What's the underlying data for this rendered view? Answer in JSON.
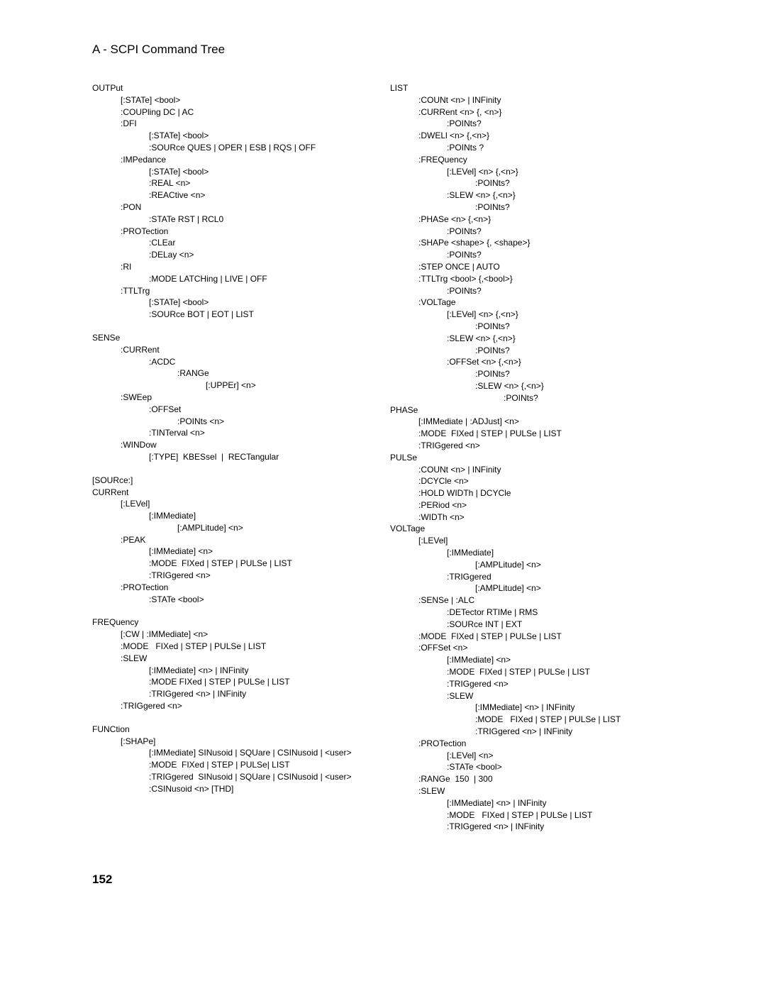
{
  "header": {
    "title": "A - SCPI Command Tree"
  },
  "footer": {
    "page_number": "152"
  },
  "left_column": [
    {
      "group": [
        {
          "text": "OUTPut",
          "indent": 0
        },
        {
          "text": "[:STATe] <bool>",
          "indent": 1
        },
        {
          "text": ":COUPling DC | AC",
          "indent": 1
        },
        {
          "text": ":DFI",
          "indent": 1
        },
        {
          "text": "[:STATe] <bool>",
          "indent": 2
        },
        {
          "text": ":SOURce QUES | OPER | ESB | RQS | OFF",
          "indent": 2
        },
        {
          "text": ":IMPedance",
          "indent": 1
        },
        {
          "text": "[:STATe] <bool>",
          "indent": 2
        },
        {
          "text": ":REAL <n>",
          "indent": 2
        },
        {
          "text": ":REACtive <n>",
          "indent": 2
        },
        {
          "text": ":PON",
          "indent": 1
        },
        {
          "text": ":STATe RST | RCL0",
          "indent": 2
        },
        {
          "text": ":PROTection",
          "indent": 1
        },
        {
          "text": ":CLEar",
          "indent": 2
        },
        {
          "text": ":DELay <n>",
          "indent": 2
        },
        {
          "text": ":RI",
          "indent": 1
        },
        {
          "text": ":MODE LATCHing | LIVE | OFF",
          "indent": 2
        },
        {
          "text": ":TTLTrg",
          "indent": 1
        },
        {
          "text": "[:STATe] <bool>",
          "indent": 2
        },
        {
          "text": ":SOURce BOT | EOT | LIST",
          "indent": 2
        }
      ]
    },
    {
      "group": [
        {
          "text": "SENSe",
          "indent": 0
        },
        {
          "text": ":CURRent",
          "indent": 1
        },
        {
          "text": ":ACDC",
          "indent": 2
        },
        {
          "text": ":RANGe",
          "indent": 3
        },
        {
          "text": "[:UPPEr] <n>",
          "indent": 4
        },
        {
          "text": ":SWEep",
          "indent": 1
        },
        {
          "text": ":OFFSet",
          "indent": 2
        },
        {
          "text": ":POINts <n>",
          "indent": 3
        },
        {
          "text": ":TINTerval <n>",
          "indent": 2
        },
        {
          "text": ":WINDow",
          "indent": 1
        },
        {
          "text": "[:TYPE]  KBESsel  |  RECTangular",
          "indent": 2
        }
      ]
    },
    {
      "group": [
        {
          "text": "[SOURce:]",
          "indent": 0
        },
        {
          "text": "CURRent",
          "indent": 0
        },
        {
          "text": "[:LEVel]",
          "indent": 1
        },
        {
          "text": "[:IMMediate]",
          "indent": 2
        },
        {
          "text": "[:AMPLitude] <n>",
          "indent": 3
        },
        {
          "text": ":PEAK",
          "indent": 1
        },
        {
          "text": "[:IMMediate] <n>",
          "indent": 2
        },
        {
          "text": ":MODE  FIXed | STEP | PULSe | LIST",
          "indent": 2
        },
        {
          "text": ":TRIGgered <n>",
          "indent": 2
        },
        {
          "text": ":PROTection",
          "indent": 1
        },
        {
          "text": ":STATe <bool>",
          "indent": 2
        }
      ]
    },
    {
      "group": [
        {
          "text": "FREQuency",
          "indent": 0
        },
        {
          "text": "[:CW | :IMMediate] <n>",
          "indent": 1
        },
        {
          "text": ":MODE   FIXed | STEP | PULSe | LIST",
          "indent": 1
        },
        {
          "text": ":SLEW",
          "indent": 1
        },
        {
          "text": "[:IMMediate] <n> | INFinity",
          "indent": 2
        },
        {
          "text": ":MODE FIXed | STEP | PULSe | LIST",
          "indent": 2
        },
        {
          "text": ":TRIGgered <n> | INFinity",
          "indent": 2
        },
        {
          "text": ":TRIGgered <n>",
          "indent": 1
        }
      ]
    },
    {
      "group": [
        {
          "text": "FUNCtion",
          "indent": 0
        },
        {
          "text": "[:SHAPe]",
          "indent": 1
        },
        {
          "text": "[:IMMediate] SINusoid | SQUare | CSINusoid | <user>",
          "indent": 2
        },
        {
          "text": ":MODE  FIXed | STEP | PULSe| LIST",
          "indent": 2
        },
        {
          "text": ":TRIGgered  SINusoid | SQUare | CSINusoid | <user>",
          "indent": 2
        },
        {
          "text": ":CSINusoid <n> [THD]",
          "indent": 2
        }
      ]
    }
  ],
  "right_column": [
    {
      "group": [
        {
          "text": "LIST",
          "indent": 0
        },
        {
          "text": ":COUNt <n> | INFinity",
          "indent": 1
        },
        {
          "text": ":CURRent <n> {, <n>}",
          "indent": 1
        },
        {
          "text": ":POINts?",
          "indent": 2
        },
        {
          "text": ":DWELl <n> {,<n>}",
          "indent": 1
        },
        {
          "text": ":POINts ?",
          "indent": 2
        },
        {
          "text": ":FREQuency",
          "indent": 1
        },
        {
          "text": "[:LEVel] <n> {,<n>}",
          "indent": 2
        },
        {
          "text": ":POINts?",
          "indent": 3
        },
        {
          "text": ":SLEW <n> {,<n>}",
          "indent": 2
        },
        {
          "text": ":POINts?",
          "indent": 3
        },
        {
          "text": ":PHASe <n> {,<n>}",
          "indent": 1
        },
        {
          "text": ":POINts?",
          "indent": 2
        },
        {
          "text": ":SHAPe <shape> {, <shape>}",
          "indent": 1
        },
        {
          "text": ":POINts?",
          "indent": 2
        },
        {
          "text": ":STEP ONCE | AUTO",
          "indent": 1
        },
        {
          "text": ":TTLTrg <bool> {,<bool>}",
          "indent": 1
        },
        {
          "text": ":POINts?",
          "indent": 2
        },
        {
          "text": ":VOLTage",
          "indent": 1
        },
        {
          "text": "[:LEVel] <n> {,<n>}",
          "indent": 2
        },
        {
          "text": ":POINts?",
          "indent": 3
        },
        {
          "text": ":SLEW <n> {,<n>}",
          "indent": 2
        },
        {
          "text": ":POINts?",
          "indent": 3
        },
        {
          "text": ":OFFSet <n> {,<n>}",
          "indent": 2
        },
        {
          "text": ":POINts?",
          "indent": 3
        },
        {
          "text": ":SLEW <n> {,<n>}",
          "indent": 3
        },
        {
          "text": ":POINts?",
          "indent": 4
        },
        {
          "text": "PHASe",
          "indent": 0
        },
        {
          "text": "[:IMMediate | :ADJust] <n>",
          "indent": 1
        },
        {
          "text": ":MODE  FIXed | STEP | PULSe | LIST",
          "indent": 1
        },
        {
          "text": ":TRIGgered <n>",
          "indent": 1
        },
        {
          "text": "PULSe",
          "indent": 0
        },
        {
          "text": ":COUNt <n> | INFinity",
          "indent": 1
        },
        {
          "text": ":DCYCle <n>",
          "indent": 1
        },
        {
          "text": ":HOLD WIDTh | DCYCle",
          "indent": 1
        },
        {
          "text": ":PERiod <n>",
          "indent": 1
        },
        {
          "text": ":WIDTh <n>",
          "indent": 1
        },
        {
          "text": "VOLTage",
          "indent": 0
        },
        {
          "text": "[:LEVel]",
          "indent": 1
        },
        {
          "text": "[:IMMediate]",
          "indent": 2
        },
        {
          "text": "[:AMPLitude] <n>",
          "indent": 3
        },
        {
          "text": ":TRIGgered",
          "indent": 2
        },
        {
          "text": "[:AMPLitude] <n>",
          "indent": 3
        },
        {
          "text": ":SENSe | :ALC",
          "indent": 1
        },
        {
          "text": ":DETector RTIMe | RMS",
          "indent": 2
        },
        {
          "text": ":SOURce INT | EXT",
          "indent": 2
        },
        {
          "text": ":MODE  FIXed | STEP | PULSe | LIST",
          "indent": 1
        },
        {
          "text": ":OFFSet <n>",
          "indent": 1
        },
        {
          "text": "[:IMMediate] <n>",
          "indent": 2
        },
        {
          "text": ":MODE  FIXed | STEP | PULSe | LIST",
          "indent": 2
        },
        {
          "text": ":TRIGgered <n>",
          "indent": 2
        },
        {
          "text": ":SLEW",
          "indent": 2
        },
        {
          "text": "[:IMMediate] <n> | INFinity",
          "indent": 3
        },
        {
          "text": ":MODE   FIXed | STEP | PULSe | LIST",
          "indent": 3
        },
        {
          "text": ":TRIGgered <n> | INFinity",
          "indent": 3
        },
        {
          "text": ":PROTection",
          "indent": 1
        },
        {
          "text": "[:LEVel] <n>",
          "indent": 2
        },
        {
          "text": ":STATe <bool>",
          "indent": 2
        },
        {
          "text": ":RANGe  150  | 300",
          "indent": 1
        },
        {
          "text": ":SLEW",
          "indent": 1
        },
        {
          "text": "[:IMMediate] <n> | INFinity",
          "indent": 2
        },
        {
          "text": ":MODE   FIXed | STEP | PULSe | LIST",
          "indent": 2
        },
        {
          "text": ":TRIGgered <n> | INFinity",
          "indent": 2
        }
      ]
    }
  ]
}
